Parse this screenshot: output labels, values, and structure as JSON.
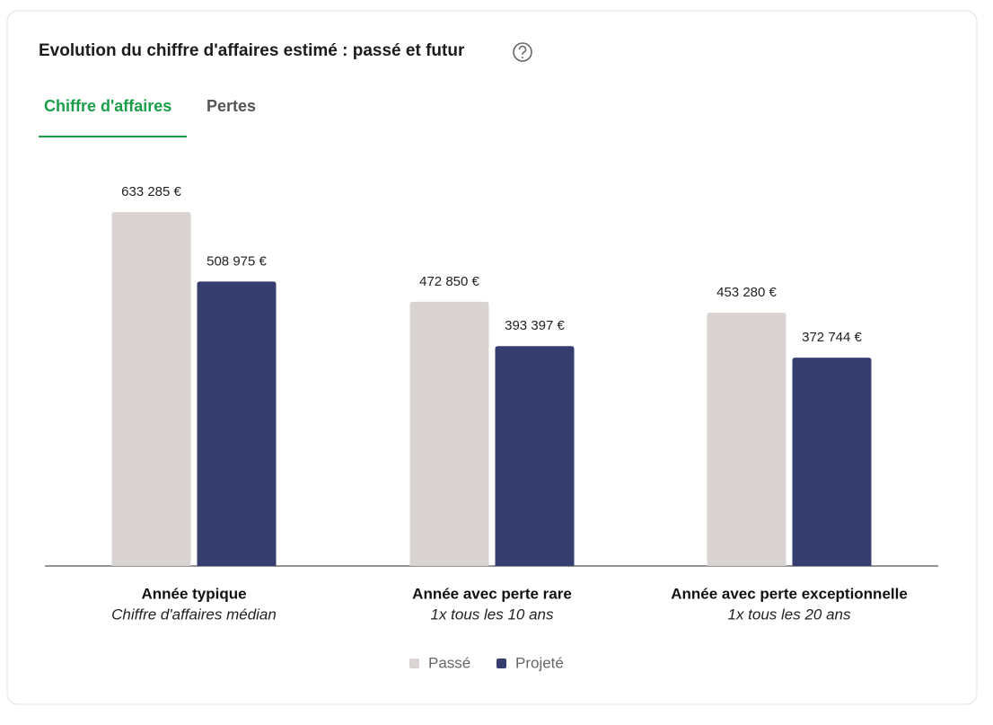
{
  "tabs": [
    "Chiffre d'affaires",
    "Pertes"
  ],
  "chart_data": {
    "type": "bar",
    "title": "Evolution du chiffre d'affaires estimé : passé et futur",
    "categories": [
      "Année typique",
      "Année avec perte rare",
      "Année avec perte exceptionnelle"
    ],
    "category_subtitles": [
      "Chiffre d'affaires médian",
      "1x tous les 10 ans",
      "1x tous les 20 ans"
    ],
    "series": [
      {
        "name": "Passé",
        "color": "#d9d4d2",
        "values": [
          633285,
          472850,
          453280
        ],
        "value_labels": [
          "633 285 €",
          "472 850 €",
          "453 280 €"
        ]
      },
      {
        "name": "Projeté",
        "color": "#363e70",
        "values": [
          508975,
          393397,
          372744
        ],
        "value_labels": [
          "508 975 €",
          "393 397 €",
          "372 744 €"
        ]
      }
    ]
  }
}
